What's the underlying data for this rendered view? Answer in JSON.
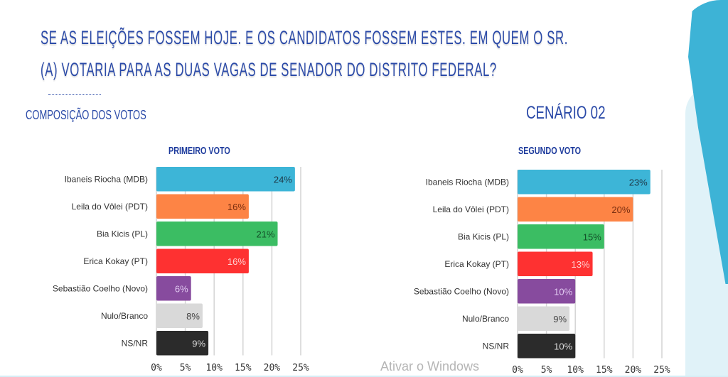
{
  "header": {
    "title_line1": "SE AS ELEIÇÕES FOSSEM HOJE. E OS CANDIDATOS FOSSEM ESTES. EM QUEM O SR.",
    "title_line2": "(A) VOTARIA PARA AS DUAS VAGAS DE SENADOR DO DISTRITO FEDERAL?",
    "subtitle": "COMPOSIÇÃO DOS VOTOS",
    "scenario": "CENÁRIO 02"
  },
  "watermark": "Ativar o Windows",
  "chart_data": [
    {
      "type": "bar",
      "orientation": "horizontal",
      "title": "PRIMEIRO VOTO",
      "categories": [
        "Ibaneis Riocha (MDB)",
        "Leila do Vôlei (PDT)",
        "Bia Kicis (PL)",
        "Erica Kokay (PT)",
        "Sebastião Coelho (Novo)",
        "Nulo/Branco",
        "NS/NR"
      ],
      "values": [
        24,
        16,
        21,
        16,
        6,
        8,
        9
      ],
      "data_labels": [
        "24%",
        "16%",
        "21%",
        "16%",
        "6%",
        "8%",
        "9%"
      ],
      "xlim": [
        0,
        25
      ],
      "xticks": [
        "0%",
        "5%",
        "10%",
        "15%",
        "20%",
        "25%"
      ],
      "grid": true
    },
    {
      "type": "bar",
      "orientation": "horizontal",
      "title": "SEGUNDO VOTO",
      "categories": [
        "Ibaneis Riocha (MDB)",
        "Leila do Vôlei (PDT)",
        "Bia Kicis (PL)",
        "Erica Kokay (PT)",
        "Sebastião Coelho (Novo)",
        "Nulo/Branco",
        "NS/NR"
      ],
      "values": [
        23,
        20,
        15,
        13,
        10,
        9,
        10
      ],
      "data_labels": [
        "23%",
        "20%",
        "15%",
        "13%",
        "10%",
        "9%",
        "10%"
      ],
      "xlim": [
        0,
        25
      ],
      "xticks": [
        "0%",
        "5%",
        "10%",
        "15%",
        "20%",
        "25%"
      ],
      "grid": true
    }
  ],
  "colors": {
    "bars": [
      "#3db5d7",
      "#fd8445",
      "#3bbd63",
      "#fe3131",
      "#874b9e",
      "#d9d9d9",
      "#2b2b2b"
    ],
    "labels": [
      "#1e3a4a",
      "#7a2e10",
      "#14502a",
      "#ffd0d0",
      "#e0c8f0",
      "#444444",
      "#dddddd"
    ]
  }
}
